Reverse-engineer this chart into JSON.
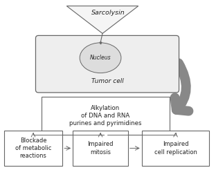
{
  "bg_color": "#ffffff",
  "sarcolysin_label": "Sarcolysin",
  "tumor_cell_label": "Tumor cell",
  "nucleus_label": "Nucleus",
  "alkylation_label": "Alkylation\nof DNA and RNA\npurines and pyrimidines",
  "box1_label": "Blockade\nof metabolic\nreactions",
  "box2_label": "Impaired\nmitosis",
  "box3_label": "Impaired\ncell replication",
  "line_color": "#666666",
  "tumor_fill": "#eeeeee",
  "nucleus_fill": "#dddddd",
  "arrow_color": "#888888",
  "text_color": "#222222",
  "font_size_main": 6.5,
  "font_size_nucleus": 5.5,
  "font_size_sarcolysin": 6.8
}
